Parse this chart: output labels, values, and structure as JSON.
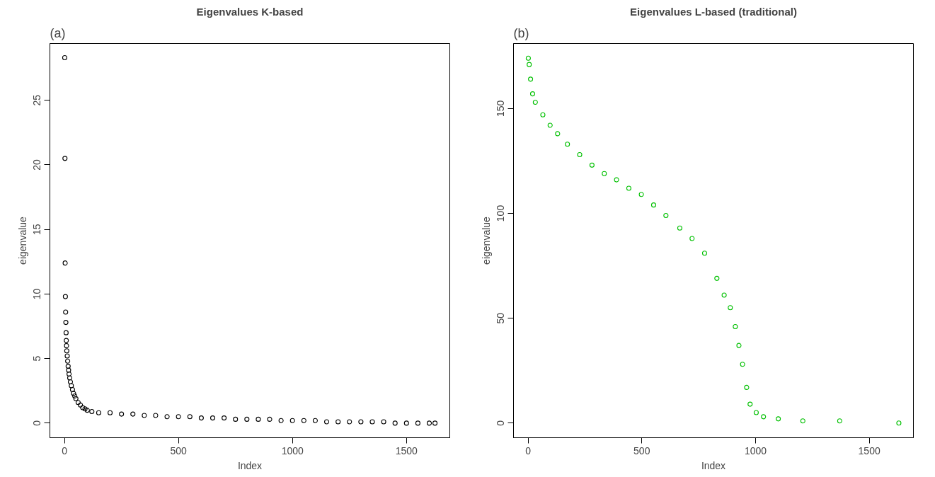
{
  "chart_data": [
    {
      "type": "scatter",
      "title": "Eigenvalues K-based",
      "xlabel": "Index",
      "ylabel": "eigenvalue",
      "annotations": [
        "(a)"
      ],
      "marker": "circle",
      "grid": false,
      "xlim": [
        -64,
        1690
      ],
      "xticks": [
        0,
        500,
        1000,
        1500
      ],
      "ylim": [
        -1.13,
        29.4
      ],
      "yticks": [
        0,
        5,
        10,
        15,
        20,
        25
      ],
      "series": [
        {
          "color": "#000000",
          "x": [
            1,
            2,
            3,
            4,
            5,
            6,
            7,
            8,
            9,
            10,
            12,
            14,
            16,
            18,
            20,
            23,
            26,
            30,
            35,
            40,
            45,
            50,
            60,
            70,
            80,
            90,
            100,
            120,
            150,
            200,
            250,
            300,
            350,
            400,
            450,
            500,
            550,
            600,
            650,
            700,
            750,
            800,
            850,
            900,
            950,
            1000,
            1050,
            1100,
            1150,
            1200,
            1250,
            1300,
            1350,
            1400,
            1450,
            1500,
            1550,
            1600,
            1625
          ],
          "values": [
            28.3,
            20.5,
            12.4,
            9.8,
            8.6,
            7.8,
            7.0,
            6.4,
            6.0,
            5.6,
            5.2,
            4.8,
            4.4,
            4.1,
            3.8,
            3.5,
            3.2,
            2.9,
            2.6,
            2.3,
            2.1,
            1.9,
            1.6,
            1.4,
            1.2,
            1.1,
            1.0,
            0.9,
            0.8,
            0.8,
            0.7,
            0.7,
            0.6,
            0.6,
            0.5,
            0.5,
            0.5,
            0.4,
            0.4,
            0.4,
            0.3,
            0.3,
            0.3,
            0.3,
            0.2,
            0.2,
            0.2,
            0.2,
            0.1,
            0.1,
            0.1,
            0.1,
            0.1,
            0.1,
            0.0,
            0.0,
            0.0,
            0.0,
            0.0
          ]
        }
      ]
    },
    {
      "type": "scatter",
      "title": "Eigenvalues L-based (traditional)",
      "xlabel": "Index",
      "ylabel": "eigenvalue",
      "annotations": [
        "(b)"
      ],
      "marker": "circle",
      "grid": false,
      "xlim": [
        -64,
        1694
      ],
      "xticks": [
        0,
        500,
        1000,
        1500
      ],
      "ylim": [
        -7,
        181
      ],
      "yticks": [
        0,
        50,
        100,
        150
      ],
      "series": [
        {
          "color": "#00c000",
          "x": [
            1,
            5,
            11,
            20,
            32,
            65,
            97,
            130,
            173,
            227,
            281,
            335,
            389,
            443,
            498,
            552,
            606,
            667,
            721,
            776,
            830,
            862,
            889,
            911,
            927,
            943,
            961,
            976,
            1003,
            1035,
            1100,
            1208,
            1370,
            1630
          ],
          "values": [
            174,
            171,
            164,
            157,
            153,
            147,
            142,
            138,
            133,
            128,
            123,
            119,
            116,
            112,
            109,
            104,
            99,
            93,
            88,
            81,
            69,
            61,
            55,
            46,
            37,
            28,
            17,
            9,
            5,
            3,
            2,
            1,
            1,
            0
          ]
        }
      ]
    }
  ]
}
